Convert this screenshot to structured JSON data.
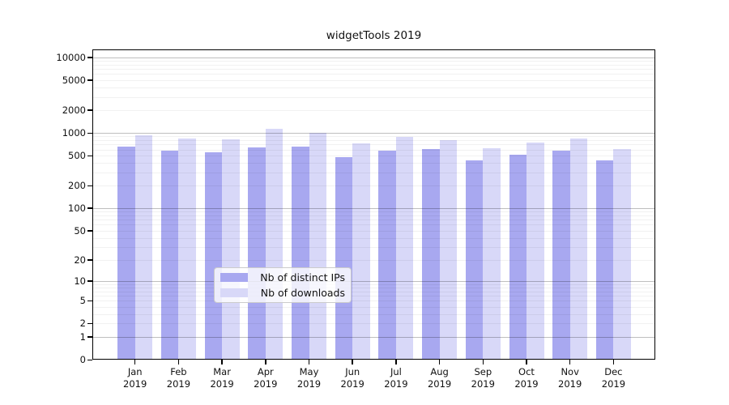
{
  "figure": {
    "background": "#ffffff"
  },
  "chart_data": {
    "type": "bar",
    "title": "widgetTools 2019",
    "categories": [
      "Jan",
      "Feb",
      "Mar",
      "Apr",
      "May",
      "Jun",
      "Jul",
      "Aug",
      "Sep",
      "Oct",
      "Nov",
      "Dec"
    ],
    "category_year": "2019",
    "series": [
      {
        "name": "Nb of distinct IPs",
        "color": "#a8a8f0",
        "values": [
          660,
          575,
          550,
          640,
          655,
          475,
          585,
          610,
          430,
          510,
          575,
          430
        ]
      },
      {
        "name": "Nb of downloads",
        "color": "#d8d8f8",
        "values": [
          940,
          850,
          825,
          1120,
          1005,
          735,
          880,
          810,
          620,
          750,
          835,
          605
        ]
      }
    ],
    "xlabel": "",
    "ylabel": "",
    "yscale": "log1p",
    "ylim": [
      0,
      12700
    ],
    "yticks": [
      0,
      1,
      2,
      5,
      10,
      20,
      50,
      100,
      200,
      500,
      1000,
      2000,
      5000,
      10000
    ],
    "grid": "horizontal; faint minor log lines, darker lines at powers of ten",
    "legend": {
      "position": "inside lower-center",
      "entries": [
        "Nb of distinct IPs",
        "Nb of downloads"
      ]
    }
  }
}
